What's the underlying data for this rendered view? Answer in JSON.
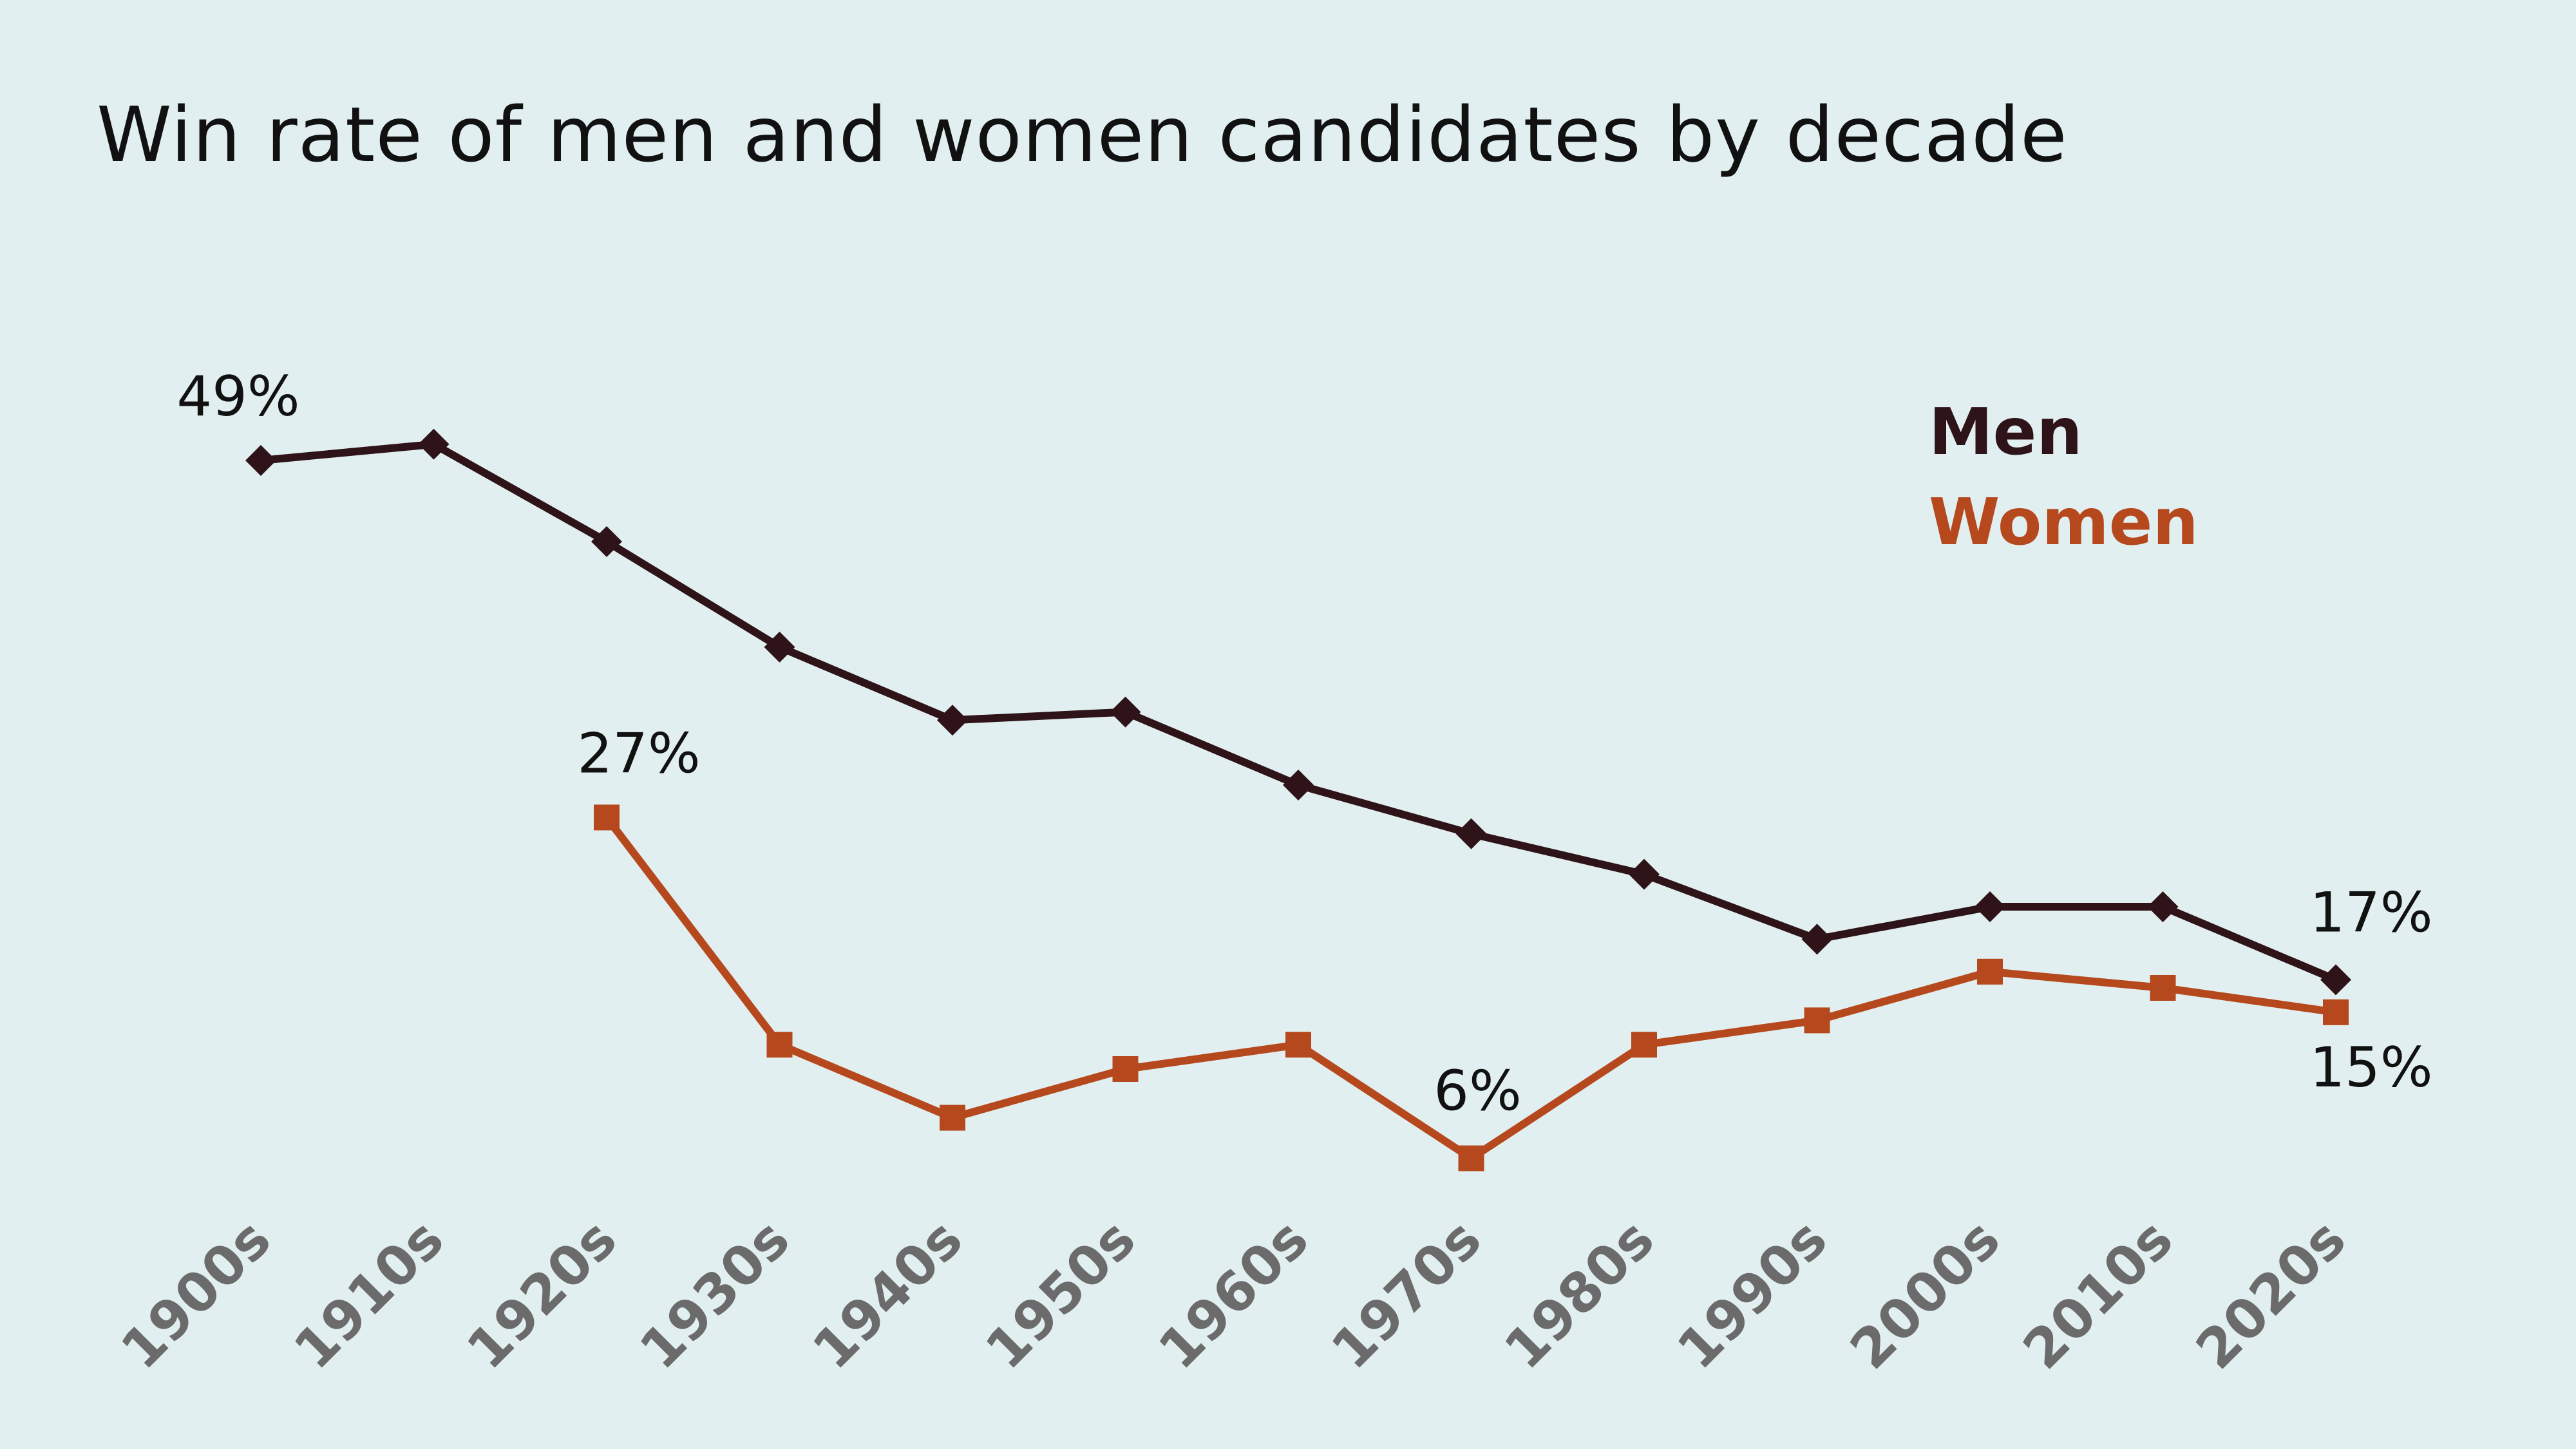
{
  "chart_data": {
    "type": "line",
    "title": "Win rate of men and women candidates by decade",
    "xlabel": "",
    "ylabel": "",
    "ylim": [
      0,
      55
    ],
    "grid": false,
    "legend_position": "top-right",
    "categories": [
      "1900s",
      "1910s",
      "1920s",
      "1930s",
      "1940s",
      "1950s",
      "1960s",
      "1970s",
      "1980s",
      "1990s",
      "2000s",
      "2010s",
      "2020s"
    ],
    "series": [
      {
        "name": "Men",
        "color": "#2e1319",
        "marker": "diamond",
        "values": [
          49,
          50,
          44,
          37.5,
          33,
          33.5,
          29,
          26,
          23.5,
          19.5,
          21.5,
          21.5,
          17
        ]
      },
      {
        "name": "Women",
        "color": "#b5491d",
        "marker": "square",
        "values": [
          null,
          null,
          27,
          13,
          8.5,
          11.5,
          13,
          6,
          13,
          14.5,
          17.5,
          16.5,
          15
        ]
      }
    ],
    "annotations": [
      {
        "series": "Men",
        "category": "1900s",
        "text": "49%"
      },
      {
        "series": "Women",
        "category": "1920s",
        "text": "27%"
      },
      {
        "series": "Women",
        "category": "1970s",
        "text": "6%"
      },
      {
        "series": "Men",
        "category": "2020s",
        "text": "17%"
      },
      {
        "series": "Women",
        "category": "2020s",
        "text": "15%"
      }
    ]
  }
}
